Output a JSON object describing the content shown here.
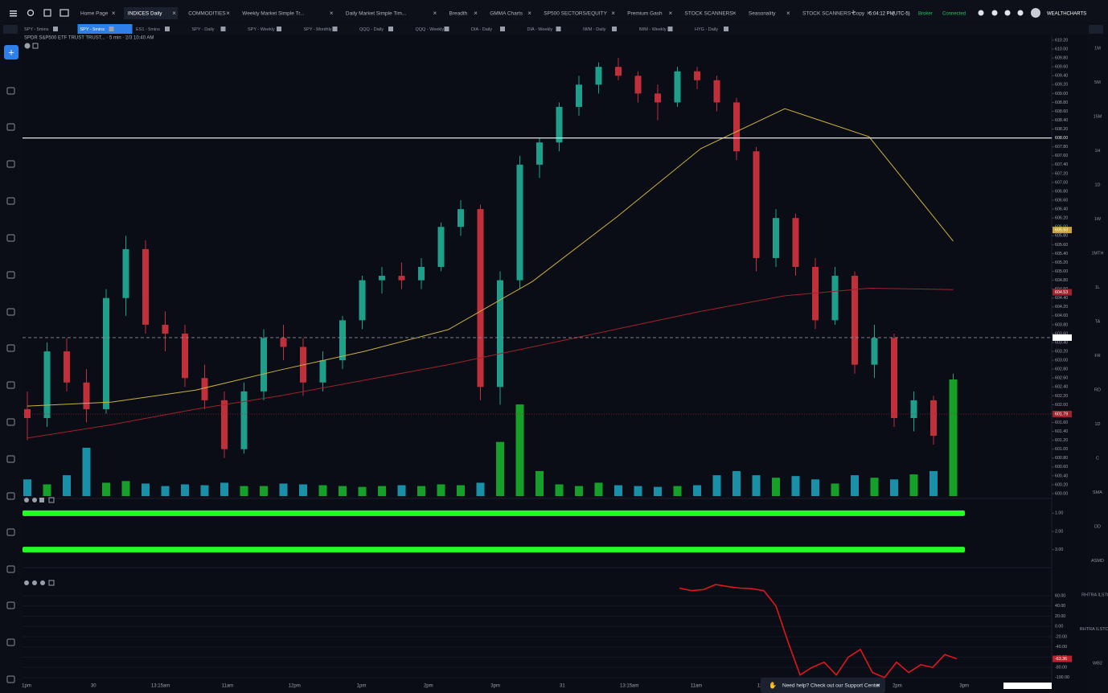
{
  "header": {
    "tabs": [
      {
        "label": "Home Page"
      },
      {
        "label": "INDICES Daily",
        "active": true
      },
      {
        "label": "COMMODITIES"
      },
      {
        "label": "Weekly Market Simple Tr..."
      },
      {
        "label": "Daily Market Simple Tim..."
      },
      {
        "label": "Breadth"
      },
      {
        "label": "GMMA Charts"
      },
      {
        "label": "SP500 SECTORS/EQUITY"
      },
      {
        "label": "Premium Gash"
      },
      {
        "label": "STOCK SCANNERS"
      },
      {
        "label": "Seasonality"
      },
      {
        "label": "STOCK SCANNERS Copy"
      }
    ],
    "clock": "5:04:12 PM",
    "timezone": "(UTC-5)",
    "broker": "Broker",
    "status": "Connected",
    "brand": "WEALTHCHARTS"
  },
  "chart_tabs": [
    {
      "label": "SPY - 5mins"
    },
    {
      "label": "SPY - 5mins",
      "active": true
    },
    {
      "label": "ES1 - 5mins"
    },
    {
      "label": "SPY - Daily"
    },
    {
      "label": "SPY - Weekly"
    },
    {
      "label": "SPY - Monthly"
    },
    {
      "label": "QQQ - Daily"
    },
    {
      "label": "QQQ - Weekly"
    },
    {
      "label": "DIA - Daily"
    },
    {
      "label": "DIA - Weekly"
    },
    {
      "label": "IWM - Daily"
    },
    {
      "label": "IWM - Weekly"
    },
    {
      "label": "HYG - Daily"
    }
  ],
  "chart": {
    "type": "candlestick",
    "title": "SPDR S&P500 ETF TRUST TRUST... · 5 min · 2/3 10:40 AM",
    "ylim": [
      600,
      610.2
    ],
    "yticks": [
      {
        "value": 600,
        "label": "600.00"
      },
      {
        "value": 600.2,
        "label": "600.20"
      },
      {
        "value": 600.4,
        "label": "600.40"
      },
      {
        "value": 600.6,
        "label": "600.60"
      },
      {
        "value": 600.8,
        "label": "600.80"
      },
      {
        "value": 601,
        "label": "601.00"
      },
      {
        "value": 601.2,
        "label": "601.20"
      },
      {
        "value": 601.4,
        "label": "601.40"
      },
      {
        "value": 601.6,
        "label": "601.60"
      },
      {
        "value": 601.8,
        "label": "601.80"
      },
      {
        "value": 602,
        "label": "602.00"
      },
      {
        "value": 602.2,
        "label": "602.20"
      },
      {
        "value": 602.4,
        "label": "602.40"
      },
      {
        "value": 602.6,
        "label": "602.60"
      },
      {
        "value": 602.8,
        "label": "602.80"
      },
      {
        "value": 603,
        "label": "603.00"
      },
      {
        "value": 603.2,
        "label": "603.20"
      },
      {
        "value": 603.4,
        "label": "603.40"
      },
      {
        "value": 603.6,
        "label": "603.60"
      },
      {
        "value": 603.8,
        "label": "603.80"
      },
      {
        "value": 604,
        "label": "604.00"
      },
      {
        "value": 604.2,
        "label": "604.20"
      },
      {
        "value": 604.4,
        "label": "604.40"
      },
      {
        "value": 604.6,
        "label": "604.60"
      },
      {
        "value": 604.8,
        "label": "604.80"
      },
      {
        "value": 605,
        "label": "605.00"
      },
      {
        "value": 605.2,
        "label": "605.20"
      },
      {
        "value": 605.4,
        "label": "605.40"
      },
      {
        "value": 605.6,
        "label": "605.60"
      },
      {
        "value": 605.8,
        "label": "605.80"
      },
      {
        "value": 606,
        "label": "606.00"
      },
      {
        "value": 606.2,
        "label": "606.20"
      },
      {
        "value": 606.4,
        "label": "606.40"
      },
      {
        "value": 606.6,
        "label": "606.60"
      },
      {
        "value": 606.8,
        "label": "606.80"
      },
      {
        "value": 607,
        "label": "607.00"
      },
      {
        "value": 607.2,
        "label": "607.20"
      },
      {
        "value": 607.4,
        "label": "607.40"
      },
      {
        "value": 607.6,
        "label": "607.60"
      },
      {
        "value": 607.8,
        "label": "607.80"
      },
      {
        "value": 608,
        "label": "608.00"
      },
      {
        "value": 608.2,
        "label": "608.20"
      },
      {
        "value": 608.4,
        "label": "608.40"
      },
      {
        "value": 608.6,
        "label": "608.60"
      },
      {
        "value": 608.8,
        "label": "608.80"
      },
      {
        "value": 609,
        "label": "609.00"
      },
      {
        "value": 609.2,
        "label": "609.20"
      },
      {
        "value": 609.4,
        "label": "609.40"
      },
      {
        "value": 609.6,
        "label": "609.60"
      },
      {
        "value": 609.8,
        "label": "609.80"
      },
      {
        "value": 610,
        "label": "610.00"
      },
      {
        "value": 610.2,
        "label": "610.20"
      }
    ],
    "candles": [
      [
        601.9,
        602.3,
        601.2,
        601.7
      ],
      [
        601.7,
        603.4,
        601.5,
        603.2
      ],
      [
        603.2,
        603.5,
        602.3,
        602.5
      ],
      [
        602.5,
        602.8,
        601.6,
        601.9
      ],
      [
        601.9,
        604.6,
        601.8,
        604.4
      ],
      [
        604.4,
        605.8,
        604.0,
        605.5
      ],
      [
        605.5,
        605.7,
        603.6,
        603.8
      ],
      [
        603.8,
        604.1,
        603.2,
        603.6
      ],
      [
        603.6,
        603.8,
        602.4,
        602.6
      ],
      [
        602.6,
        602.9,
        601.9,
        602.1
      ],
      [
        602.1,
        602.3,
        600.8,
        601.0
      ],
      [
        601.0,
        602.5,
        600.9,
        602.3
      ],
      [
        602.3,
        603.7,
        602.1,
        603.5
      ],
      [
        603.5,
        603.8,
        603.0,
        603.3
      ],
      [
        603.3,
        603.5,
        602.2,
        602.5
      ],
      [
        602.5,
        603.2,
        602.3,
        603.0
      ],
      [
        603.0,
        604.0,
        602.8,
        603.9
      ],
      [
        603.9,
        604.9,
        603.7,
        604.8
      ],
      [
        604.8,
        605.1,
        604.5,
        604.9
      ],
      [
        604.9,
        605.2,
        604.6,
        604.8
      ],
      [
        604.8,
        605.3,
        604.6,
        605.1
      ],
      [
        605.1,
        606.1,
        605.0,
        606.0
      ],
      [
        606.0,
        606.6,
        605.8,
        606.4
      ],
      [
        606.4,
        606.5,
        602.1,
        602.4
      ],
      [
        602.4,
        605.0,
        602.0,
        604.8
      ],
      [
        604.8,
        607.6,
        604.6,
        607.4
      ],
      [
        607.4,
        608.0,
        607.1,
        607.9
      ],
      [
        607.9,
        608.8,
        607.7,
        608.7
      ],
      [
        608.7,
        609.4,
        608.5,
        609.2
      ],
      [
        609.2,
        609.7,
        609.0,
        609.6
      ],
      [
        609.6,
        609.8,
        609.3,
        609.4
      ],
      [
        609.4,
        609.5,
        608.8,
        609.0
      ],
      [
        609.0,
        609.2,
        608.4,
        608.8
      ],
      [
        608.8,
        609.6,
        608.7,
        609.5
      ],
      [
        609.5,
        609.6,
        609.1,
        609.3
      ],
      [
        609.3,
        609.4,
        608.6,
        608.8
      ],
      [
        608.8,
        608.9,
        607.5,
        607.7
      ],
      [
        607.7,
        607.8,
        605.0,
        605.3
      ],
      [
        605.3,
        606.4,
        605.1,
        606.2
      ],
      [
        606.2,
        606.3,
        604.9,
        605.1
      ],
      [
        605.1,
        605.3,
        603.7,
        603.9
      ],
      [
        603.9,
        605.1,
        603.8,
        604.9
      ],
      [
        604.9,
        605.0,
        602.7,
        602.9
      ],
      [
        602.9,
        603.8,
        602.6,
        603.5
      ],
      [
        603.5,
        603.6,
        601.5,
        601.7
      ],
      [
        601.7,
        602.3,
        601.4,
        602.1
      ],
      [
        602.1,
        602.2,
        601.1,
        601.3
      ],
      [
        601.3,
        602.7,
        601.2,
        602.4
      ]
    ],
    "up_color": "#1f9e8a",
    "down_color": "#c0303a",
    "volume": [
      20,
      14,
      25,
      58,
      16,
      18,
      15,
      12,
      14,
      13,
      16,
      12,
      12,
      15,
      14,
      13,
      12,
      11,
      12,
      13,
      12,
      14,
      13,
      16,
      65,
      110,
      30,
      14,
      12,
      16,
      13,
      12,
      11,
      12,
      13,
      25,
      30,
      25,
      22,
      24,
      20,
      15,
      25,
      22,
      20,
      26,
      30,
      140
    ],
    "volume_up_color": "#16a02a",
    "volume_down_color": "#1a8fa8",
    "ma_fast": {
      "color": "#c9b13a",
      "values": [
        601.97,
        602.06,
        602.33,
        602.78,
        603.2,
        603.69,
        604.77,
        606.22,
        607.76,
        608.66,
        608.03,
        605.68
      ]
    },
    "ma_slow": {
      "color": "#a0222c",
      "values": [
        601.25,
        601.55,
        601.9,
        602.2,
        602.55,
        602.9,
        603.3,
        603.7,
        604.1,
        604.45,
        604.62,
        604.59
      ]
    },
    "levels": [
      {
        "value": 608,
        "label": "608.00",
        "color": "#e6e6e6",
        "style": "solid"
      },
      {
        "value": 603.51,
        "color": "#8a8f99",
        "style": "dashed"
      },
      {
        "value": 601.79,
        "color": "#a0222c",
        "style": "dotted"
      }
    ],
    "price_tags": [
      {
        "value": 605.93,
        "color": "#c9a43a"
      },
      {
        "value": 604.53,
        "color": "#a0222c"
      },
      {
        "value": 601.79,
        "color": "#a0222c"
      }
    ],
    "xlabels": [
      "1pm",
      "30",
      "13:15am",
      "11am",
      "12pm",
      "1pm",
      "2pm",
      "3pm",
      "31",
      "13:15am",
      "11am",
      "12pm",
      "1pm",
      "2pm",
      "3pm",
      "Feb"
    ]
  },
  "indicator": {
    "ylim": [
      0.5,
      3.5
    ],
    "reversed": true,
    "color": "#22ff22",
    "yticks": [
      {
        "value": 1,
        "label": "1.00"
      },
      {
        "value": 2,
        "label": "2.00"
      },
      {
        "value": 3,
        "label": "3.00"
      }
    ],
    "bars": [
      1,
      3
    ]
  },
  "oscillator": {
    "ylim": [
      -105,
      90
    ],
    "color": "#e0161c",
    "yticks": [
      {
        "value": 60,
        "label": "60.00"
      },
      {
        "value": 40,
        "label": "40.00"
      },
      {
        "value": 20,
        "label": "20.00"
      },
      {
        "value": 0,
        "label": "0.00"
      },
      {
        "value": -20,
        "label": "-20.00"
      },
      {
        "value": -40,
        "label": "-40.00"
      },
      {
        "value": -60,
        "label": "-60.00"
      },
      {
        "value": -80,
        "label": "-80.00"
      },
      {
        "value": -100,
        "label": "-100.00"
      }
    ],
    "values": [
      75,
      70,
      72,
      82,
      78,
      75,
      74,
      70,
      40,
      -30,
      -95,
      -80,
      -70,
      -95,
      -60,
      -45,
      -90,
      -100,
      -70,
      -90,
      -75,
      -80,
      -55,
      -63.36
    ]
  },
  "timeframes": [
    "1M",
    "5M",
    "15M",
    "1H",
    "1D",
    "1W",
    "1MTH",
    "1L",
    "TA",
    "FR",
    "RD",
    "1D",
    "C",
    "SMA",
    "DD",
    "ASMD",
    "RHTRA ILSTOP",
    "RHTRA ILSTOP Z",
    "WB2"
  ],
  "support": "Need help? Check out our Support Center"
}
